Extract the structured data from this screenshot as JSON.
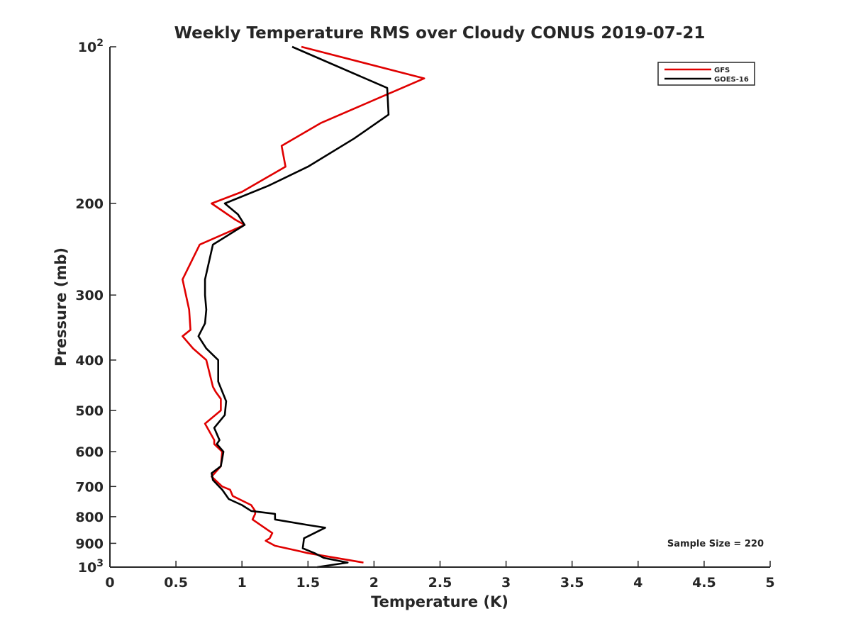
{
  "chart_data": {
    "type": "line",
    "title": "Weekly Temperature RMS over Cloudy CONUS 2019-07-21",
    "xlabel": "Temperature (K)",
    "ylabel": "Pressure (mb)",
    "xlim": [
      0,
      5
    ],
    "ylim": [
      100,
      1000
    ],
    "y_scale": "log",
    "y_reversed": true,
    "grid": false,
    "legend_position": "top-right",
    "x_ticks": [
      {
        "value": 0,
        "label": "0"
      },
      {
        "value": 0.5,
        "label": "0.5"
      },
      {
        "value": 1,
        "label": "1"
      },
      {
        "value": 1.5,
        "label": "1.5"
      },
      {
        "value": 2,
        "label": "2"
      },
      {
        "value": 2.5,
        "label": "2.5"
      },
      {
        "value": 3,
        "label": "3"
      },
      {
        "value": 3.5,
        "label": "3.5"
      },
      {
        "value": 4,
        "label": "4"
      },
      {
        "value": 4.5,
        "label": "4.5"
      },
      {
        "value": 5,
        "label": "5"
      }
    ],
    "y_ticks": [
      {
        "value": 100,
        "label": "10",
        "sup": "2"
      },
      {
        "value": 200,
        "label": "200"
      },
      {
        "value": 300,
        "label": "300"
      },
      {
        "value": 400,
        "label": "400"
      },
      {
        "value": 500,
        "label": "500"
      },
      {
        "value": 600,
        "label": "600"
      },
      {
        "value": 700,
        "label": "700"
      },
      {
        "value": 800,
        "label": "800"
      },
      {
        "value": 900,
        "label": "900"
      },
      {
        "value": 1000,
        "label": "10",
        "sup": "3"
      }
    ],
    "annotation": "Sample Size = 220",
    "series": [
      {
        "name": "GFS",
        "color": "#e00000",
        "points": [
          [
            1.45,
            100
          ],
          [
            2.38,
            115
          ],
          [
            2.05,
            125
          ],
          [
            1.6,
            140
          ],
          [
            1.3,
            155
          ],
          [
            1.33,
            170
          ],
          [
            1.0,
            190
          ],
          [
            0.77,
            200
          ],
          [
            0.95,
            215
          ],
          [
            1.02,
            220
          ],
          [
            0.68,
            240
          ],
          [
            0.55,
            280
          ],
          [
            0.6,
            320
          ],
          [
            0.61,
            350
          ],
          [
            0.55,
            360
          ],
          [
            0.63,
            380
          ],
          [
            0.73,
            400
          ],
          [
            0.78,
            450
          ],
          [
            0.8,
            460
          ],
          [
            0.84,
            475
          ],
          [
            0.84,
            500
          ],
          [
            0.72,
            530
          ],
          [
            0.79,
            570
          ],
          [
            0.79,
            580
          ],
          [
            0.85,
            600
          ],
          [
            0.84,
            640
          ],
          [
            0.77,
            670
          ],
          [
            0.85,
            700
          ],
          [
            0.91,
            710
          ],
          [
            0.93,
            730
          ],
          [
            1.07,
            760
          ],
          [
            1.1,
            780
          ],
          [
            1.1,
            790
          ],
          [
            1.08,
            810
          ],
          [
            1.2,
            850
          ],
          [
            1.23,
            860
          ],
          [
            1.21,
            880
          ],
          [
            1.18,
            890
          ],
          [
            1.25,
            910
          ],
          [
            1.42,
            930
          ],
          [
            1.5,
            940
          ],
          [
            1.92,
            980
          ]
        ]
      },
      {
        "name": "GOES-16",
        "color": "#000000",
        "points": [
          [
            1.38,
            100
          ],
          [
            2.1,
            120
          ],
          [
            2.11,
            135
          ],
          [
            1.85,
            150
          ],
          [
            1.5,
            170
          ],
          [
            1.2,
            185
          ],
          [
            0.87,
            200
          ],
          [
            0.97,
            210
          ],
          [
            1.02,
            220
          ],
          [
            0.78,
            240
          ],
          [
            0.72,
            280
          ],
          [
            0.72,
            300
          ],
          [
            0.73,
            320
          ],
          [
            0.72,
            340
          ],
          [
            0.67,
            360
          ],
          [
            0.73,
            380
          ],
          [
            0.82,
            400
          ],
          [
            0.82,
            420
          ],
          [
            0.82,
            440
          ],
          [
            0.88,
            480
          ],
          [
            0.87,
            510
          ],
          [
            0.79,
            540
          ],
          [
            0.83,
            570
          ],
          [
            0.81,
            580
          ],
          [
            0.86,
            600
          ],
          [
            0.84,
            640
          ],
          [
            0.77,
            660
          ],
          [
            0.78,
            680
          ],
          [
            0.85,
            710
          ],
          [
            0.9,
            740
          ],
          [
            1.0,
            760
          ],
          [
            1.07,
            780
          ],
          [
            1.25,
            790
          ],
          [
            1.25,
            810
          ],
          [
            1.5,
            830
          ],
          [
            1.63,
            840
          ],
          [
            1.47,
            880
          ],
          [
            1.46,
            920
          ],
          [
            1.55,
            940
          ],
          [
            1.62,
            960
          ],
          [
            1.8,
            980
          ],
          [
            1.57,
            1000
          ]
        ]
      }
    ]
  }
}
